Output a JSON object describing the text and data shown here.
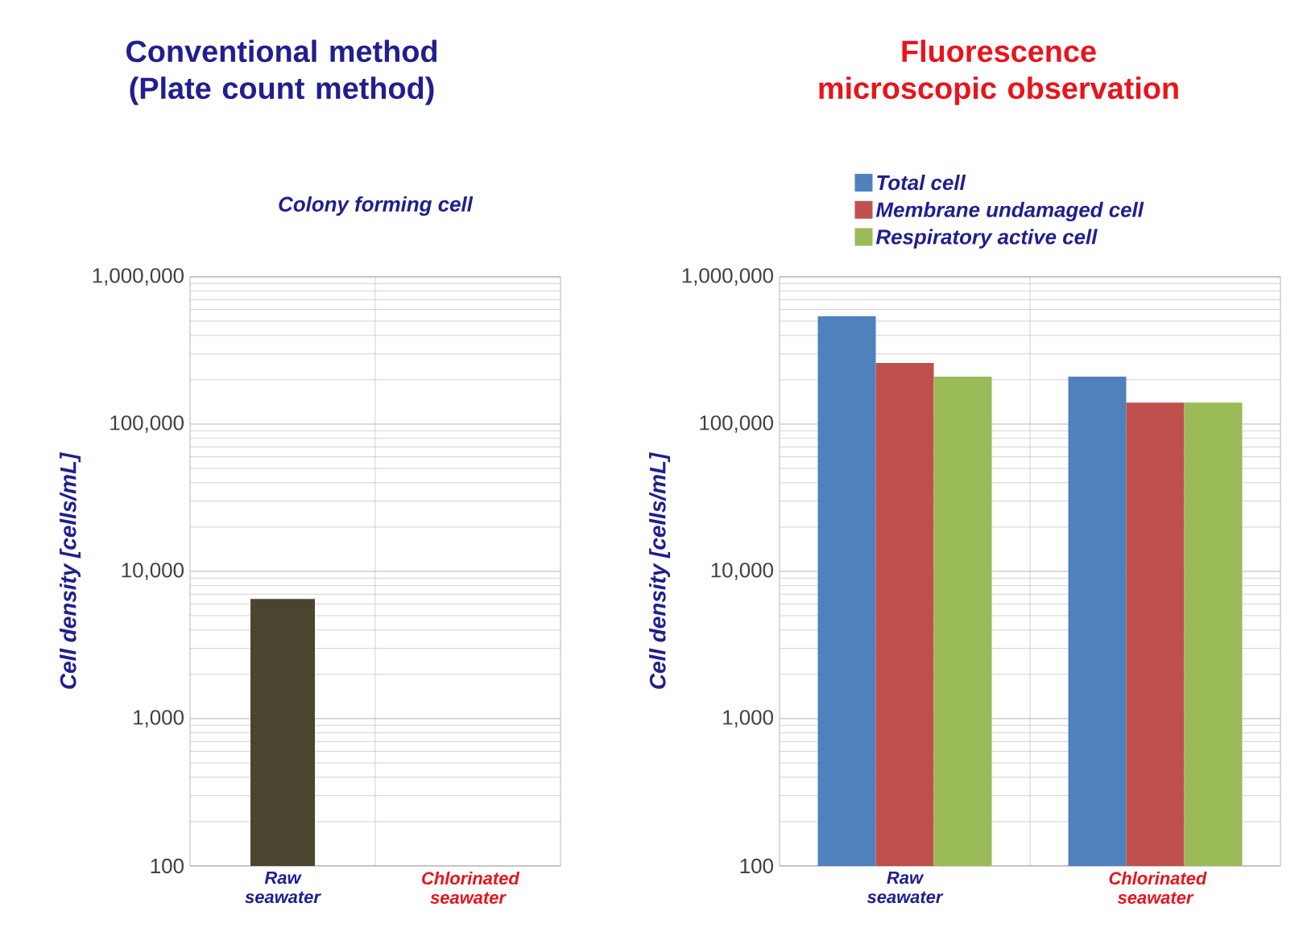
{
  "chart_data": [
    {
      "type": "bar",
      "title": "Conventional method (Plate count method)",
      "subtitle": "Colony forming cell",
      "ylabel": "Cell density [cells/mL]",
      "categories": [
        "Raw seawater",
        "Chlorinated seawater"
      ],
      "values": [
        6500,
        null
      ],
      "color": "#4b4530",
      "log": "y",
      "ylim": [
        100,
        1000000
      ],
      "yticks": [
        {
          "value": 100,
          "label": "100"
        },
        {
          "value": 1000,
          "label": "1,000"
        },
        {
          "value": 10000,
          "label": "10,000"
        },
        {
          "value": 100000,
          "label": "100,000"
        },
        {
          "value": 1000000,
          "label": "1,000,000"
        }
      ],
      "grid": true
    },
    {
      "type": "bar",
      "title": "Fluorescence microscopic observation",
      "ylabel": "Cell density [cells/mL]",
      "categories": [
        "Raw seawater",
        "Chlorinated seawater"
      ],
      "series": [
        {
          "name": "Total cell",
          "color": "#4f81bd",
          "values": [
            540000,
            210000
          ]
        },
        {
          "name": "Membrane undamaged cell",
          "color": "#c0504d",
          "values": [
            260000,
            140000
          ]
        },
        {
          "name": "Respiratory active cell",
          "color": "#9bbb59",
          "values": [
            210000,
            140000
          ]
        }
      ],
      "log": "y",
      "ylim": [
        100,
        1000000
      ],
      "yticks": [
        {
          "value": 100,
          "label": "100"
        },
        {
          "value": 1000,
          "label": "1,000"
        },
        {
          "value": 10000,
          "label": "10,000"
        },
        {
          "value": 100000,
          "label": "100,000"
        },
        {
          "value": 1000000,
          "label": "1,000,000"
        }
      ],
      "grid": true,
      "legend": "top"
    }
  ]
}
